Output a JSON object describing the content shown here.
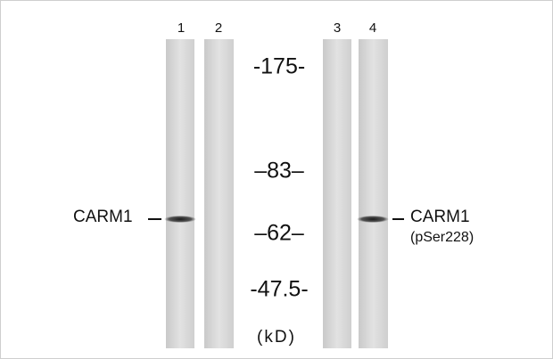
{
  "lanes": [
    "1",
    "2",
    "3",
    "4"
  ],
  "markers": [
    "-175-",
    "–83–",
    "–62–",
    "-47.5-"
  ],
  "unit": "(kD)",
  "left_label": "CARM1",
  "right_label": {
    "name": "CARM1",
    "detail": "(pSer228)"
  }
}
